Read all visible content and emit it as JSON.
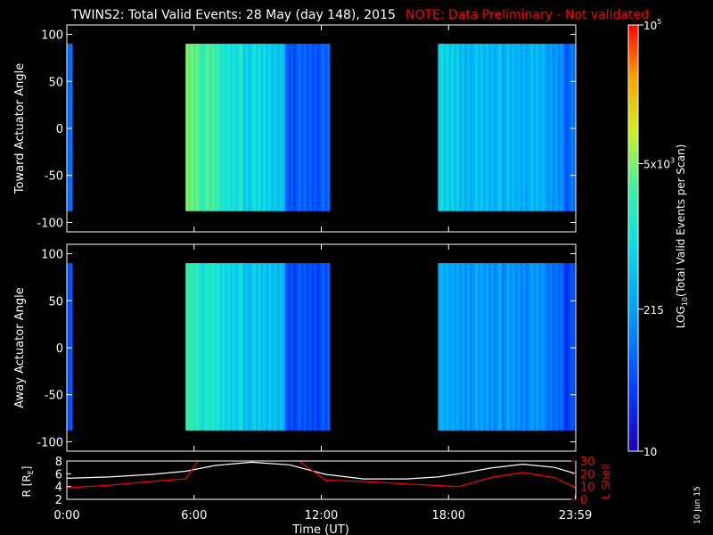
{
  "header": {
    "title": "TWINS2: Total Valid Events: 28 May (day 148), 2015",
    "note": "NOTE: Data Preliminary - Not validated"
  },
  "colors": {
    "background": "#000000",
    "axis": "#ffffff",
    "note": "#ff0000",
    "r_line": "#ffffff",
    "lshell_line": "#ff0000"
  },
  "chart_data": [
    {
      "type": "heatmap",
      "panel": "toward",
      "ylabel": "Toward Actuator Angle",
      "ylim": [
        -110,
        110
      ],
      "yticks": [
        -100,
        -50,
        0,
        50,
        100
      ],
      "ytick_labels": [
        "-100",
        "-50",
        "0",
        "50",
        "100"
      ],
      "xlim_hours": [
        0,
        24
      ],
      "data_angle_range": [
        -88,
        90
      ],
      "data_segments_hours": [
        [
          0,
          0.25
        ],
        [
          5.6,
          12.4
        ],
        [
          17.5,
          24
        ]
      ],
      "column_log10_values": [
        {
          "x": [
            0,
            0.25
          ],
          "v": 2.0
        },
        {
          "x": [
            5.6,
            6.2
          ],
          "v": 3.6
        },
        {
          "x": [
            6.2,
            7.2
          ],
          "v": 3.4
        },
        {
          "x": [
            7.2,
            8.3
          ],
          "v": 3.1
        },
        {
          "x": [
            8.3,
            9.5
          ],
          "v": 2.9
        },
        {
          "x": [
            9.5,
            10.3
          ],
          "v": 2.7
        },
        {
          "x": [
            10.3,
            12.4
          ],
          "v": 1.8
        },
        {
          "x": [
            17.5,
            18.5
          ],
          "v": 2.8
        },
        {
          "x": [
            18.5,
            20.5
          ],
          "v": 2.6
        },
        {
          "x": [
            20.5,
            22.5
          ],
          "v": 2.5
        },
        {
          "x": [
            22.5,
            23.4
          ],
          "v": 2.3
        },
        {
          "x": [
            23.4,
            24
          ],
          "v": 1.9
        }
      ]
    },
    {
      "type": "heatmap",
      "panel": "away",
      "ylabel": "Away Actuator Angle",
      "ylim": [
        -110,
        110
      ],
      "yticks": [
        -100,
        -50,
        0,
        50,
        100
      ],
      "ytick_labels": [
        "-100",
        "-50",
        "0",
        "50",
        "100"
      ],
      "xlim_hours": [
        0,
        24
      ],
      "data_angle_range": [
        -88,
        90
      ],
      "data_segments_hours": [
        [
          0,
          0.25
        ],
        [
          5.6,
          12.4
        ],
        [
          17.5,
          24
        ]
      ],
      "column_log10_values": [
        {
          "x": [
            0,
            0.25
          ],
          "v": 1.8
        },
        {
          "x": [
            5.6,
            6.2
          ],
          "v": 3.3
        },
        {
          "x": [
            6.2,
            7.2
          ],
          "v": 3.1
        },
        {
          "x": [
            7.2,
            8.3
          ],
          "v": 2.9
        },
        {
          "x": [
            8.3,
            9.5
          ],
          "v": 2.7
        },
        {
          "x": [
            9.5,
            10.3
          ],
          "v": 2.6
        },
        {
          "x": [
            10.3,
            12.4
          ],
          "v": 1.7
        },
        {
          "x": [
            17.5,
            18.5
          ],
          "v": 2.4
        },
        {
          "x": [
            18.5,
            20.5
          ],
          "v": 2.3
        },
        {
          "x": [
            20.5,
            22.5
          ],
          "v": 2.2
        },
        {
          "x": [
            22.5,
            23.4
          ],
          "v": 2.0
        },
        {
          "x": [
            23.4,
            24
          ],
          "v": 1.6
        }
      ]
    },
    {
      "type": "colorbar",
      "label": "LOG10(Total Valid Events per Scan)",
      "label_plain": "LOG",
      "label_sub": "10",
      "label_rest": "(Total Valid Events per Scan)",
      "range_log10": [
        1,
        5
      ],
      "ticks": [
        {
          "value": 5,
          "label_base": "10",
          "label_exp": "5"
        },
        {
          "value": 3.699,
          "label_base": "5x10",
          "label_exp": "3"
        },
        {
          "value": 2.332,
          "label_base": "215",
          "label_exp": ""
        },
        {
          "value": 1,
          "label_base": "10",
          "label_exp": ""
        }
      ]
    },
    {
      "type": "line",
      "panel": "orbit",
      "ylabel": "R [RE]",
      "ylabel_main": "R [R",
      "ylabel_sub": "E",
      "ylabel_end": "]",
      "ylim": [
        2,
        8
      ],
      "yticks": [
        2,
        4,
        6,
        8
      ],
      "ytick_labels": [
        "2",
        "4",
        "6",
        "8"
      ],
      "y2label": "L Shell",
      "y2lim": [
        0,
        30
      ],
      "y2ticks": [
        0,
        10,
        20,
        30
      ],
      "y2tick_labels": [
        "0",
        "10",
        "20",
        "30"
      ],
      "xlabel": "Time (UT)",
      "xlim_hours": [
        0,
        24
      ],
      "xticks": [
        0,
        6,
        12,
        18,
        23.983
      ],
      "xtick_labels": [
        "0:00",
        "6:00",
        "12:00",
        "18:00",
        "23:59"
      ],
      "series": [
        {
          "name": "R",
          "axis": "left",
          "x": [
            0,
            2,
            4,
            5.6,
            7,
            8.7,
            10.5,
            12.2,
            14,
            16,
            17.5,
            18.5,
            20,
            21.5,
            23,
            24
          ],
          "y": [
            5.3,
            5.5,
            5.9,
            6.4,
            7.3,
            7.8,
            7.4,
            5.9,
            5.2,
            5.2,
            5.5,
            6.0,
            6.9,
            7.5,
            7.0,
            6.0
          ]
        },
        {
          "name": "L Shell",
          "axis": "right",
          "x": [
            0,
            2,
            4,
            5.6,
            6.3,
            10.7,
            12.2,
            14,
            16,
            18.5,
            20,
            21.5,
            23,
            24
          ],
          "y": [
            9,
            11,
            14,
            16,
            33,
            33,
            15,
            14,
            12,
            10,
            17,
            21,
            17,
            9
          ]
        }
      ]
    }
  ],
  "footer": {
    "stamp": "10 Jun 15"
  }
}
